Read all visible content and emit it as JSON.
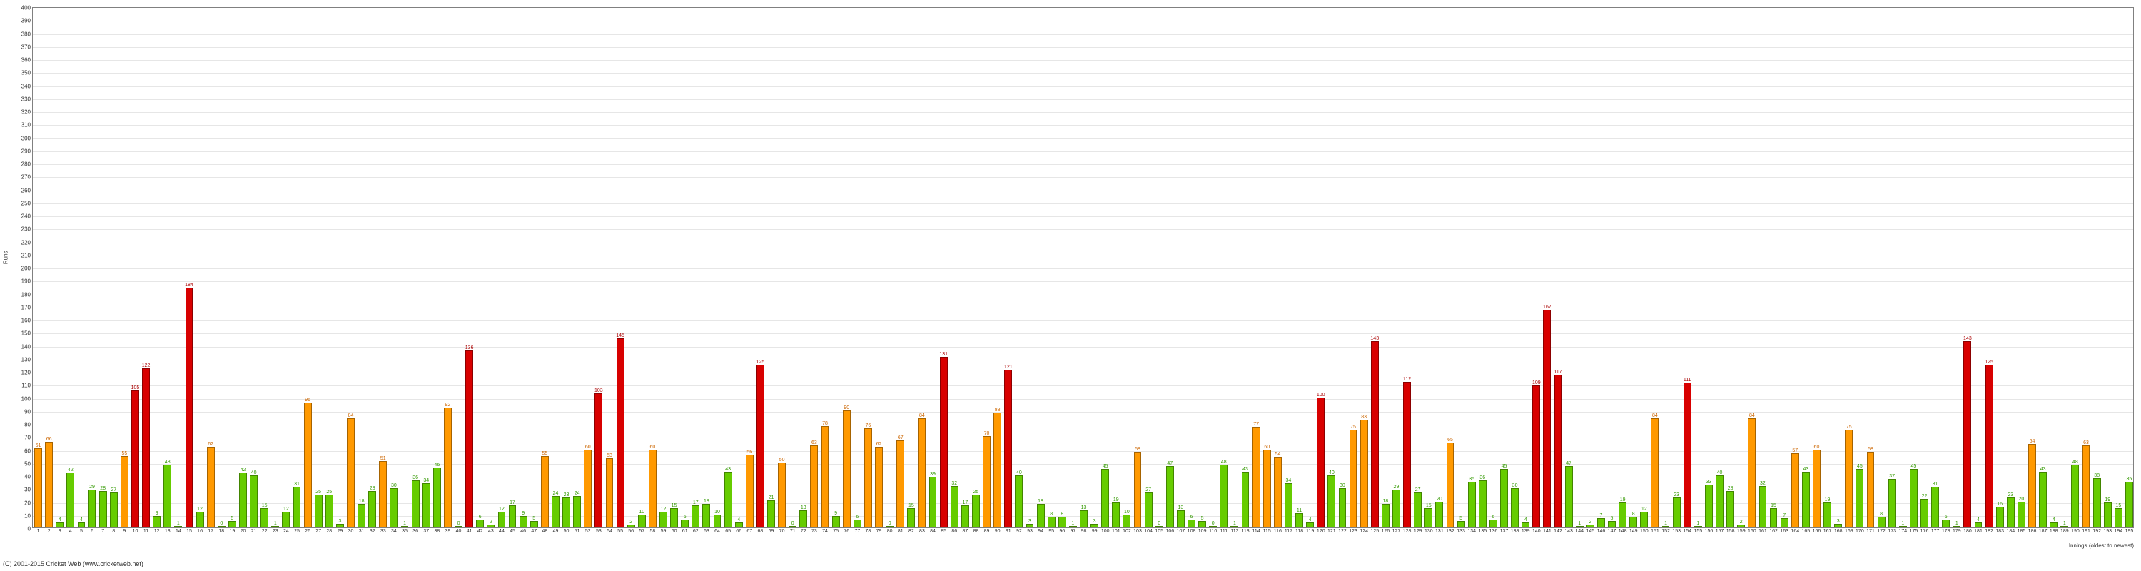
{
  "chart": {
    "type": "bar",
    "ylabel": "Runs",
    "xlabel": "Innings (oldest to newest)",
    "ylim_min": 0,
    "ylim_max": 400,
    "ytick_step": 10,
    "label_fontsize": 8,
    "value_fontsize": 7,
    "background_color": "#ffffff",
    "grid_color": "#e6e6e6",
    "axis_color": "#808080",
    "bar_width_ratio": 0.72,
    "colors": {
      "low": "#66cc00",
      "mid": "#ff9900",
      "high": "#d80000"
    },
    "label_colors": {
      "low": "#339900",
      "mid": "#cc6600",
      "high": "#aa0000"
    },
    "threshold_low_max": 49,
    "threshold_mid_max": 99,
    "values": [
      61,
      66,
      4,
      42,
      4,
      29,
      28,
      27,
      55,
      105,
      122,
      9,
      48,
      1,
      184,
      12,
      62,
      0,
      5,
      42,
      40,
      15,
      1,
      12,
      31,
      96,
      25,
      25,
      3,
      84,
      18,
      28,
      51,
      30,
      1,
      36,
      34,
      46,
      92,
      0,
      136,
      6,
      2,
      12,
      17,
      9,
      5,
      55,
      24,
      23,
      24,
      60,
      103,
      53,
      145,
      2,
      10,
      60,
      12,
      15,
      6,
      17,
      18,
      10,
      43,
      4,
      56,
      125,
      21,
      50,
      0,
      13,
      63,
      78,
      9,
      90,
      6,
      76,
      62,
      0,
      67,
      15,
      84,
      39,
      131,
      32,
      17,
      25,
      70,
      88,
      121,
      40,
      3,
      18,
      8,
      8,
      1,
      13,
      3,
      45,
      19,
      10,
      58,
      27,
      0,
      47,
      13,
      6,
      5,
      0,
      48,
      1,
      43,
      77,
      60,
      54,
      34,
      11,
      4,
      100,
      40,
      30,
      75,
      83,
      143,
      18,
      29,
      112,
      27,
      15,
      20,
      65,
      5,
      35,
      36,
      6,
      45,
      30,
      4,
      109,
      167,
      117,
      47,
      1,
      2,
      7,
      5,
      19,
      8,
      12,
      84,
      1,
      23,
      111,
      1,
      33,
      40,
      28,
      2,
      84,
      32,
      15,
      7,
      57,
      43,
      60,
      19,
      3,
      75,
      45,
      58,
      8,
      37,
      1,
      45,
      22,
      31,
      6,
      1,
      143,
      4,
      125,
      16,
      23,
      20,
      64,
      43,
      4,
      1,
      48,
      63,
      38,
      19,
      15,
      35
    ]
  },
  "copyright": "(C) 2001-2015 Cricket Web (www.cricketweb.net)"
}
